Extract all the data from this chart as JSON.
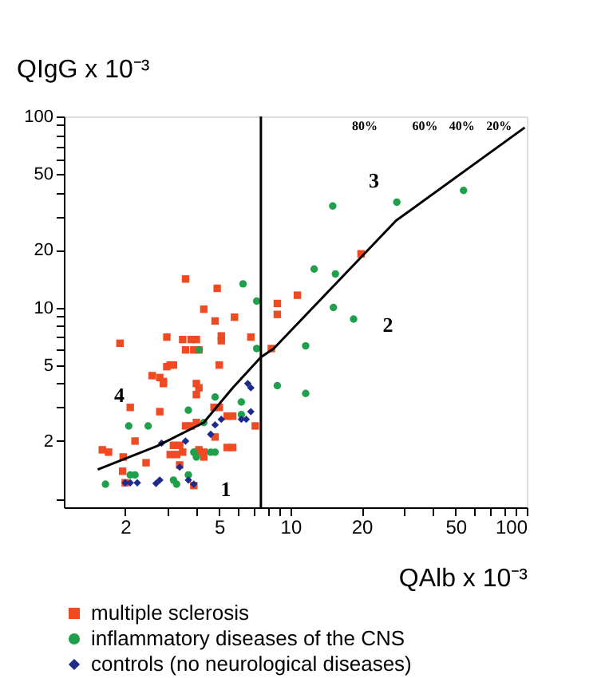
{
  "chart_data": {
    "type": "scatter",
    "xlabel": "QAlb x 10⁻³",
    "ylabel": "QIgG x 10⁻³",
    "log": "xy",
    "xlim": [
      1.1,
      100
    ],
    "ylim": [
      0.9,
      100
    ],
    "xticks": [
      2,
      {
        "value": 3,
        "label": null
      },
      {
        "value": 4,
        "label": null
      },
      5,
      {
        "value": 6,
        "label": null
      },
      {
        "value": 7,
        "label": null
      },
      {
        "value": 8,
        "label": null
      },
      {
        "value": 9,
        "label": null
      },
      10,
      20,
      {
        "value": 30,
        "label": null
      },
      {
        "value": 40,
        "label": null
      },
      50,
      {
        "value": 60,
        "label": null
      },
      {
        "value": 70,
        "label": null
      },
      {
        "value": 80,
        "label": null
      },
      {
        "value": 90,
        "label": null
      },
      100
    ],
    "yticks": [
      {
        "value": 1,
        "label": null
      },
      2,
      {
        "value": 3,
        "label": null
      },
      {
        "value": 4,
        "label": null
      },
      5,
      {
        "value": 6,
        "label": null
      },
      {
        "value": 7,
        "label": null
      },
      {
        "value": 8,
        "label": null
      },
      {
        "value": 9,
        "label": null
      },
      10,
      20,
      {
        "value": 30,
        "label": null
      },
      {
        "value": 40,
        "label": null
      },
      50,
      {
        "value": 60,
        "label": null
      },
      {
        "value": 70,
        "label": null
      },
      {
        "value": 80,
        "label": null
      },
      {
        "value": 90,
        "label": null
      },
      100
    ],
    "grid": false,
    "legend": "bottom",
    "series": [
      {
        "name": "multiple sclerosis",
        "type": "scatter",
        "marker": "square",
        "color": "#f04a23",
        "x": [
          1.9,
          3.0,
          3.5,
          3.8,
          4.0,
          3.9,
          4.1,
          3.6,
          5.1,
          5.1,
          6.8,
          8.3,
          3.1,
          3.2,
          3.0,
          5.0,
          2.6,
          2.8,
          2.9,
          2.9,
          4.0,
          4.1,
          4.0,
          2.1,
          2.8,
          4.75,
          5.0,
          5.4,
          5.7,
          7.1,
          3.6,
          3.8,
          4.0,
          2.2,
          3.2,
          3.4,
          1.6,
          1.7,
          1.96,
          3.5,
          4.0,
          4.1,
          4.3,
          4.3,
          3.1,
          3.3,
          2.45,
          3.4,
          1.95,
          2.0,
          3.9,
          5.4,
          5.7,
          4.8,
          3.6,
          4.9,
          4.3,
          4.8,
          5.8,
          8.8,
          8.8,
          10.7,
          19.9
        ],
        "values": [
          6.5,
          7.0,
          6.8,
          6.8,
          6.8,
          6.0,
          6.0,
          6.0,
          7.1,
          6.7,
          7.0,
          6.1,
          5.0,
          5.0,
          4.9,
          5.0,
          4.4,
          4.3,
          4.0,
          4.1,
          4.0,
          3.8,
          3.5,
          3.0,
          2.85,
          3.0,
          3.0,
          2.7,
          2.7,
          2.4,
          2.4,
          2.4,
          2.5,
          2.0,
          1.9,
          1.9,
          1.8,
          1.75,
          1.65,
          1.75,
          1.75,
          1.8,
          1.75,
          1.65,
          1.7,
          1.7,
          1.54,
          1.5,
          1.39,
          1.21,
          1.17,
          1.85,
          1.85,
          2.1,
          14.1,
          12.6,
          9.8,
          8.5,
          8.9,
          10.5,
          9.2,
          11.6,
          19.1
        ]
      },
      {
        "name": "inflammatory diseases of the CNS",
        "type": "scatter",
        "marker": "circle",
        "color": "#1fa04a",
        "x": [
          1.65,
          2.1,
          2.2,
          2.07,
          2.5,
          3.7,
          4.1,
          4.3,
          4.8,
          4.6,
          3.9,
          4.0,
          3.2,
          3.3,
          3.7,
          4.8,
          6.2,
          7.2,
          7.2,
          8.8,
          11.6,
          11.6,
          15.2,
          18.5,
          6.2,
          15.1,
          28.2,
          54,
          12.6,
          15.5,
          6.3
        ],
        "values": [
          1.19,
          1.33,
          1.33,
          2.4,
          2.4,
          2.9,
          6.0,
          2.5,
          3.4,
          1.75,
          1.75,
          1.65,
          1.25,
          1.19,
          1.33,
          1.75,
          2.75,
          10.8,
          6.1,
          3.9,
          6.3,
          3.55,
          10,
          8.7,
          3.2,
          34,
          35.6,
          41,
          15.9,
          15,
          13.3
        ]
      },
      {
        "name": "controls (no neurological diseases)",
        "type": "scatter",
        "marker": "diamond",
        "color": "#1f2a8a",
        "x": [
          2.1,
          2.25,
          2.0,
          2.7,
          2.8,
          3.7,
          3.9,
          2.85,
          3.6,
          3.4,
          4.6,
          4.8,
          5.1,
          6.6,
          6.8,
          6.8,
          6.2,
          6.5
        ],
        "values": [
          1.21,
          1.21,
          1.21,
          1.2,
          1.25,
          1.25,
          1.19,
          1.95,
          2.0,
          1.46,
          2.17,
          2.43,
          2.6,
          4.0,
          3.8,
          2.85,
          2.6,
          2.6
        ]
      },
      {
        "type": "line",
        "color": "#000000",
        "line_style": "solid",
        "x": [
          1.53,
          2.72,
          4.3,
          5.7,
          7.5,
          8.5,
          28,
          98
        ],
        "values": [
          1.42,
          1.88,
          2.5,
          3.8,
          5.5,
          6.1,
          28.5,
          87.5
        ]
      }
    ],
    "ref_lines": [
      {
        "axis": "x",
        "value": 7.5,
        "color": "#000000",
        "line_style": "solid"
      }
    ],
    "annotations": [
      "1",
      "2",
      "3",
      "4",
      "80%",
      "60%",
      "40%",
      "20%"
    ]
  }
}
